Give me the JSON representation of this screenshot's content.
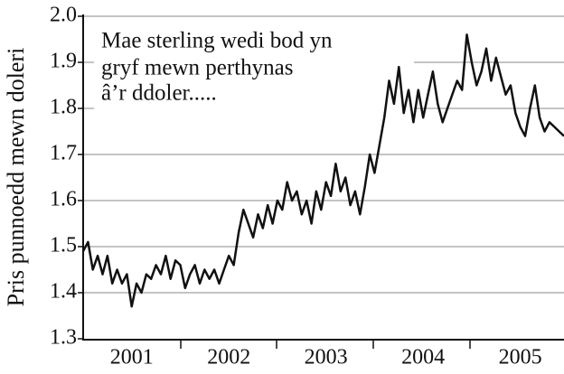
{
  "chart_data": {
    "type": "line",
    "ylabel": "Pris punnoedd mewn doleri",
    "annotation": [
      "Mae sterling wedi bod yn",
      "gryf mewn perthynas",
      "â’r ddoler....."
    ],
    "categories": [
      null,
      null,
      null,
      null,
      null,
      null,
      null,
      null,
      null,
      null,
      "2001",
      null,
      null,
      null,
      null,
      null,
      null,
      null,
      null,
      null,
      null,
      null,
      null,
      null,
      null,
      null,
      null,
      null,
      null,
      null,
      "2002",
      null,
      null,
      null,
      null,
      null,
      null,
      null,
      null,
      null,
      null,
      null,
      null,
      null,
      null,
      null,
      null,
      null,
      null,
      null,
      "2003",
      null,
      null,
      null,
      null,
      null,
      null,
      null,
      null,
      null,
      null,
      null,
      null,
      null,
      null,
      null,
      null,
      null,
      null,
      null,
      "2004",
      null,
      null,
      null,
      null,
      null,
      null,
      null,
      null,
      null,
      null,
      null,
      null,
      null,
      null,
      null,
      null,
      null,
      null,
      null,
      "2005",
      null,
      null,
      null,
      null,
      null,
      null,
      null,
      null,
      null
    ],
    "series": [
      {
        "color": "#111111",
        "values": [
          1.49,
          1.51,
          1.45,
          1.48,
          1.44,
          1.48,
          1.42,
          1.45,
          1.42,
          1.44,
          1.37,
          1.42,
          1.4,
          1.44,
          1.43,
          1.46,
          1.44,
          1.48,
          1.43,
          1.47,
          1.46,
          1.41,
          1.44,
          1.46,
          1.42,
          1.45,
          1.43,
          1.45,
          1.42,
          1.45,
          1.48,
          1.46,
          1.53,
          1.58,
          1.55,
          1.52,
          1.57,
          1.54,
          1.59,
          1.55,
          1.6,
          1.58,
          1.64,
          1.6,
          1.62,
          1.57,
          1.6,
          1.55,
          1.62,
          1.58,
          1.64,
          1.61,
          1.68,
          1.62,
          1.65,
          1.59,
          1.62,
          1.57,
          1.63,
          1.7,
          1.66,
          1.72,
          1.78,
          1.86,
          1.81,
          1.89,
          1.79,
          1.84,
          1.77,
          1.84,
          1.78,
          1.83,
          1.88,
          1.81,
          1.77,
          1.8,
          1.83,
          1.86,
          1.84,
          1.96,
          1.9,
          1.85,
          1.88,
          1.93,
          1.86,
          1.91,
          1.87,
          1.83,
          1.85,
          1.79,
          1.76,
          1.74,
          1.8,
          1.85,
          1.78,
          1.75,
          1.77,
          1.76,
          1.75,
          1.74
        ]
      }
    ],
    "ylim": [
      1.3,
      2.0
    ],
    "yticks": [
      1.3,
      1.4,
      1.5,
      1.6,
      1.7,
      1.8,
      1.9,
      {
        "value": 2.0,
        "label": "2.0"
      }
    ],
    "grid": true
  }
}
